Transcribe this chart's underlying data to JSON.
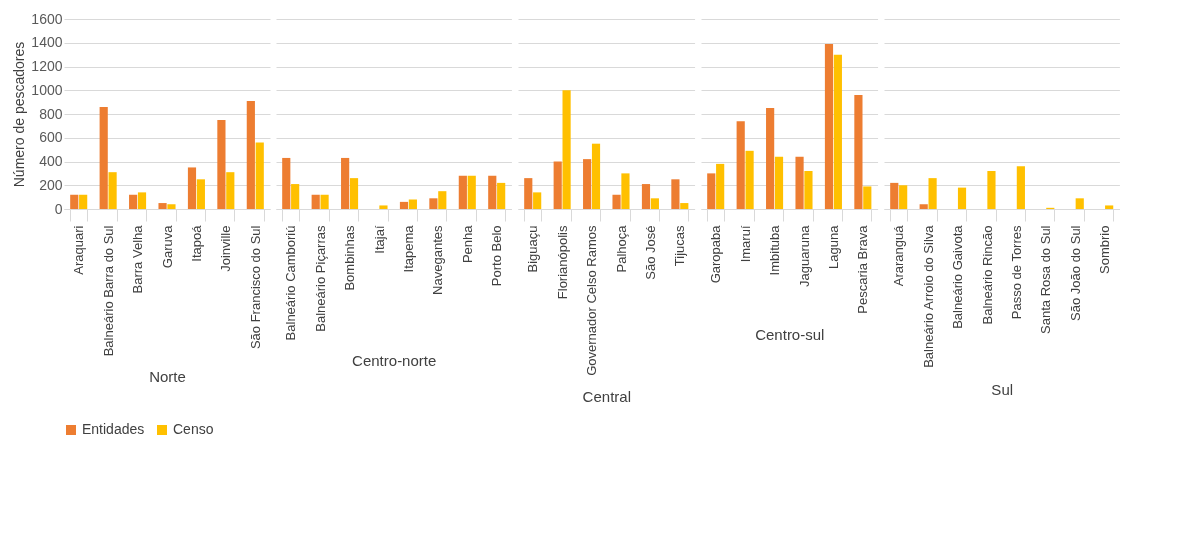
{
  "chart_data": [
    {
      "type": "bar",
      "ylabel": "Número de pescadores",
      "xlabel": "Norte",
      "legend": "bottom",
      "categories": [
        "Araquari",
        "Balneário Barra do Sul",
        "Barra Velha",
        "Garuva",
        "Itapoá",
        "Joinville",
        "São Francisco do Sul"
      ],
      "series": [
        {
          "name": "Entidades",
          "color": "#ed7d31",
          "values": [
            120,
            860,
            120,
            50,
            350,
            750,
            910
          ]
        },
        {
          "name": "Censo",
          "color": "#ffc000",
          "values": [
            120,
            310,
            140,
            40,
            250,
            310,
            560
          ]
        }
      ],
      "ylim": [
        0,
        1600
      ],
      "yticks": [
        0,
        200,
        400,
        600,
        800,
        1000,
        1200,
        1400,
        1600
      ],
      "grid": "y"
    },
    {
      "type": "bar",
      "xlabel": "Centro-norte",
      "tick_labels": "x",
      "categories": [
        "Balneário Camboriú",
        "Balneário Piçarras",
        "Bombinhas",
        "Itajaí",
        "Itapema",
        "Navegantes",
        "Penha",
        "Porto Belo"
      ],
      "series": [
        {
          "name": "Entidades",
          "color": "#ed7d31",
          "values": [
            430,
            120,
            430,
            null,
            60,
            90,
            280,
            280
          ]
        },
        {
          "name": "Censo",
          "color": "#ffc000",
          "values": [
            210,
            120,
            260,
            30,
            80,
            150,
            280,
            220
          ]
        }
      ],
      "ylim": [
        0,
        1600
      ],
      "yticks": [
        0,
        200,
        400,
        600,
        800,
        1000,
        1200,
        1400,
        1600
      ],
      "grid": "y"
    },
    {
      "type": "bar",
      "xlabel": "Central",
      "tick_labels": "x",
      "categories": [
        "Biguaçu",
        "Florianópolis",
        "Governador Celso Ramos",
        "Palhoça",
        "São José",
        "Tijucas"
      ],
      "series": [
        {
          "name": "Entidades",
          "color": "#ed7d31",
          "values": [
            260,
            400,
            420,
            120,
            210,
            250
          ]
        },
        {
          "name": "Censo",
          "color": "#ffc000",
          "values": [
            140,
            1000,
            550,
            300,
            90,
            50
          ]
        }
      ],
      "ylim": [
        0,
        1600
      ],
      "yticks": [
        0,
        200,
        400,
        600,
        800,
        1000,
        1200,
        1400,
        1600
      ],
      "grid": "y"
    },
    {
      "type": "bar",
      "xlabel": "Centro-sul",
      "tick_labels": "x",
      "categories": [
        "Garopaba",
        "Imaruí",
        "Imbituba",
        "Jaguaruna",
        "Laguna",
        "Pescaria Brava"
      ],
      "series": [
        {
          "name": "Entidades",
          "color": "#ed7d31",
          "values": [
            300,
            740,
            850,
            440,
            1390,
            960
          ]
        },
        {
          "name": "Censo",
          "color": "#ffc000",
          "values": [
            380,
            490,
            440,
            320,
            1300,
            190
          ]
        }
      ],
      "ylim": [
        0,
        1600
      ],
      "yticks": [
        0,
        200,
        400,
        600,
        800,
        1000,
        1200,
        1400,
        1600
      ],
      "grid": "y"
    },
    {
      "type": "bar",
      "xlabel": "Sul",
      "tick_labels": "x",
      "categories": [
        "Araranguá",
        "Balneário Arroio do Silva",
        "Balneário Gaivota",
        "Balneário Rincão",
        "Passo de Torres",
        "Santa Rosa do Sul",
        "São João do Sul",
        "Sombrio"
      ],
      "series": [
        {
          "name": "Entidades",
          "color": "#ed7d31",
          "values": [
            220,
            40,
            null,
            null,
            null,
            null,
            null,
            null
          ]
        },
        {
          "name": "Censo",
          "color": "#ffc000",
          "values": [
            200,
            260,
            180,
            320,
            360,
            10,
            90,
            30
          ]
        }
      ],
      "ylim": [
        0,
        1600
      ],
      "yticks": [
        0,
        200,
        400,
        600,
        800,
        1000,
        1200,
        1400,
        1600
      ],
      "grid": "y"
    }
  ]
}
